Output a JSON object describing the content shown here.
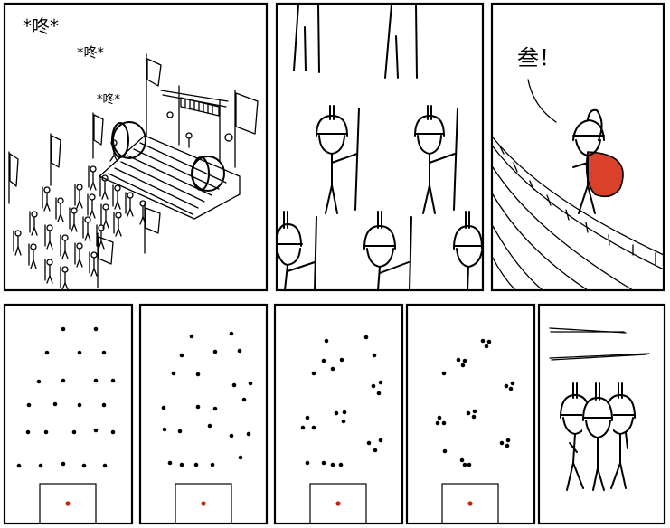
{
  "comic": {
    "panel1": {
      "sfx_large": "*咚*",
      "sfx_medium": "*咚*",
      "sfx_small": "*咚*"
    },
    "panel3": {
      "sfx": "叁！"
    }
  },
  "colors": {
    "ink": "#000000",
    "cape": "#d9412b",
    "marker": "#cc2200",
    "paper": "#ffffff"
  }
}
